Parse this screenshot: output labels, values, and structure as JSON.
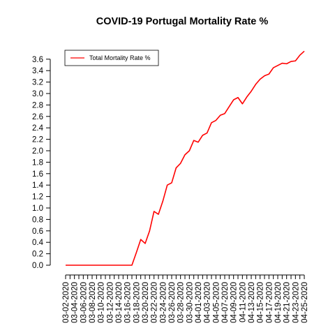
{
  "chart_data": {
    "type": "line",
    "title": "COVID-19 Portugal Mortality Rate %",
    "xlabel": "",
    "ylabel": "",
    "ylim": [
      0,
      3.7
    ],
    "y_ticks": [
      0.0,
      0.2,
      0.4,
      0.6,
      0.8,
      1.0,
      1.2,
      1.4,
      1.6,
      1.8,
      2.0,
      2.2,
      2.4,
      2.6,
      2.8,
      3.0,
      3.2,
      3.4,
      3.6
    ],
    "y_tick_labels": [
      "0.0",
      "0.2",
      "0.4",
      "0.6",
      "0.8",
      "1.0",
      "1.2",
      "1.4",
      "1.6",
      "1.8",
      "2.0",
      "2.2",
      "2.4",
      "2.6",
      "2.8",
      "3.0",
      "3.2",
      "3.4",
      "3.6"
    ],
    "x_tick_labels": [
      "03-02-2020",
      "03-04-2020",
      "03-06-2020",
      "03-08-2020",
      "03-10-2020",
      "03-12-2020",
      "03-14-2020",
      "03-16-2020",
      "03-18-2020",
      "03-20-2020",
      "03-22-2020",
      "03-24-2020",
      "03-26-2020",
      "03-28-2020",
      "03-30-2020",
      "04-01-2020",
      "04-03-2020",
      "04-05-2020",
      "04-07-2020",
      "04-09-2020",
      "04-11-2020",
      "04-13-2020",
      "04-15-2020",
      "04-17-2020",
      "04-19-2020",
      "04-21-2020",
      "04-23-2020",
      "04-25-2020"
    ],
    "legend": {
      "position": "top-left",
      "entries": [
        "Total Mortality Rate %"
      ]
    },
    "grid": false,
    "series": [
      {
        "name": "Total Mortality Rate %",
        "color": "#ff0000",
        "x": [
          "03-02-2020",
          "03-03-2020",
          "03-04-2020",
          "03-05-2020",
          "03-06-2020",
          "03-07-2020",
          "03-08-2020",
          "03-09-2020",
          "03-10-2020",
          "03-11-2020",
          "03-12-2020",
          "03-13-2020",
          "03-14-2020",
          "03-15-2020",
          "03-16-2020",
          "03-17-2020",
          "03-18-2020",
          "03-19-2020",
          "03-20-2020",
          "03-21-2020",
          "03-22-2020",
          "03-23-2020",
          "03-24-2020",
          "03-25-2020",
          "03-26-2020",
          "03-27-2020",
          "03-28-2020",
          "03-29-2020",
          "03-30-2020",
          "03-31-2020",
          "04-01-2020",
          "04-02-2020",
          "04-03-2020",
          "04-04-2020",
          "04-05-2020",
          "04-06-2020",
          "04-07-2020",
          "04-08-2020",
          "04-09-2020",
          "04-10-2020",
          "04-11-2020",
          "04-12-2020",
          "04-13-2020",
          "04-14-2020",
          "04-15-2020",
          "04-16-2020",
          "04-17-2020",
          "04-18-2020",
          "04-19-2020",
          "04-20-2020",
          "04-21-2020",
          "04-22-2020",
          "04-23-2020",
          "04-24-2020",
          "04-25-2020"
        ],
        "values": [
          0,
          0,
          0,
          0,
          0,
          0,
          0,
          0,
          0,
          0,
          0,
          0,
          0,
          0,
          0,
          0,
          0.22,
          0.45,
          0.38,
          0.6,
          0.94,
          0.89,
          1.12,
          1.4,
          1.44,
          1.7,
          1.78,
          1.93,
          2.0,
          2.18,
          2.15,
          2.27,
          2.31,
          2.49,
          2.53,
          2.62,
          2.65,
          2.77,
          2.89,
          2.93,
          2.82,
          2.94,
          3.04,
          3.16,
          3.25,
          3.31,
          3.34,
          3.45,
          3.49,
          3.53,
          3.52,
          3.56,
          3.57,
          3.67,
          3.74
        ]
      }
    ]
  }
}
